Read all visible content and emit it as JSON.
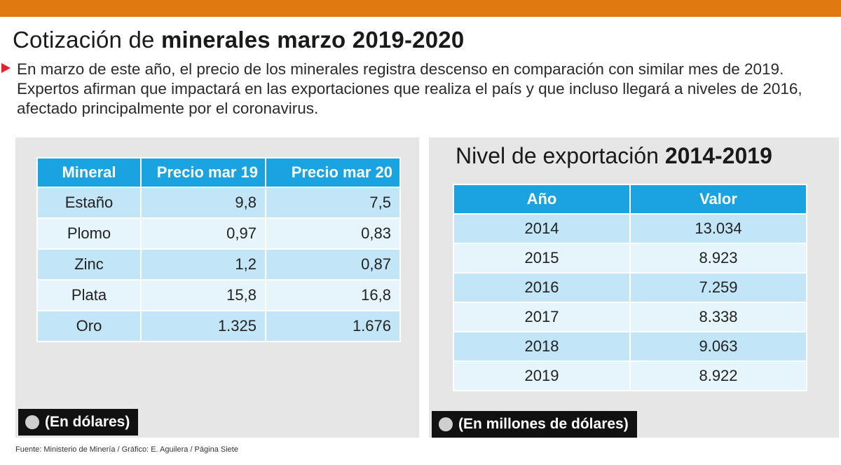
{
  "header": {
    "title_plain": "Cotización de",
    "title_bold": "minerales marzo 2019-2020",
    "intro_lines": [
      "En marzo de este año, el precio de los minerales registra descenso en comparación con similar mes de 2019.",
      "Expertos afirman que impactará en las exportaciones que realiza el país y que incluso llegará a niveles de 2016,",
      "afectado principalmente por el coronavirus."
    ]
  },
  "colors": {
    "top_bar": "#e07a10",
    "bullet": "#e4232b",
    "table_header": "#1aa3e0",
    "row_dark": "#c2e6f8",
    "row_light": "#e6f5fc",
    "panel": "#e6e6e6"
  },
  "chart_data": [
    {
      "type": "table",
      "columns": [
        "Mineral",
        "Precio mar 19",
        "Precio mar 20"
      ],
      "rows": [
        [
          "Estaño",
          "9,8",
          "7,5"
        ],
        [
          "Plomo",
          "0,97",
          "0,83"
        ],
        [
          "Zinc",
          "1,2",
          "0,87"
        ],
        [
          "Plata",
          "15,8",
          "16,8"
        ],
        [
          "Oro",
          "1.325",
          "1.676"
        ]
      ],
      "unit_note": "(En dólares)"
    },
    {
      "type": "table",
      "title_plain": "Nivel de exportación",
      "title_bold": "2014-2019",
      "columns": [
        "Año",
        "Valor"
      ],
      "rows": [
        [
          "2014",
          "13.034"
        ],
        [
          "2015",
          "8.923"
        ],
        [
          "2016",
          "7.259"
        ],
        [
          "2017",
          "8.338"
        ],
        [
          "2018",
          "9.063"
        ],
        [
          "2019",
          "8.922"
        ]
      ],
      "unit_note": "(En millones de dólares)"
    }
  ],
  "footer": {
    "source": "Fuente: Ministerio de Minería / Gráfico: E. Aguilera / Página Siete"
  }
}
